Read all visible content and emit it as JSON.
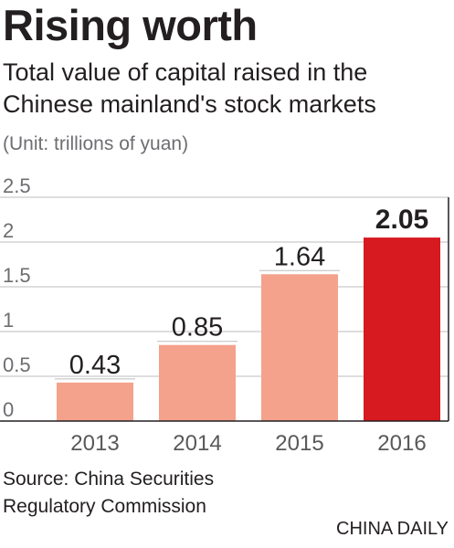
{
  "chart_data": {
    "type": "bar",
    "title": "Rising worth",
    "subtitle": "Total value of capital raised in the Chinese mainland's stock markets",
    "unit": "(Unit: trillions of yuan)",
    "categories": [
      "2013",
      "2014",
      "2015",
      "2016"
    ],
    "values": [
      0.43,
      0.85,
      1.64,
      2.05
    ],
    "value_labels": [
      "0.43",
      "0.85",
      "1.64",
      "2.05"
    ],
    "highlight_index": 3,
    "ylim": [
      0,
      2.5
    ],
    "yticks": [
      0,
      0.5,
      1,
      1.5,
      2,
      2.5
    ],
    "ytick_labels": [
      "0",
      "0.5",
      "1",
      "1.5",
      "2",
      "2.5"
    ],
    "grid": true,
    "colors": {
      "bar": "#f4a28c",
      "highlight": "#d71920",
      "grid": "#bcbec0",
      "axis": "#231f20",
      "tick_text": "#6d6e71"
    }
  },
  "footer": {
    "source": "Source: China Securities Regulatory Commission",
    "brand": "CHINA DAILY"
  }
}
